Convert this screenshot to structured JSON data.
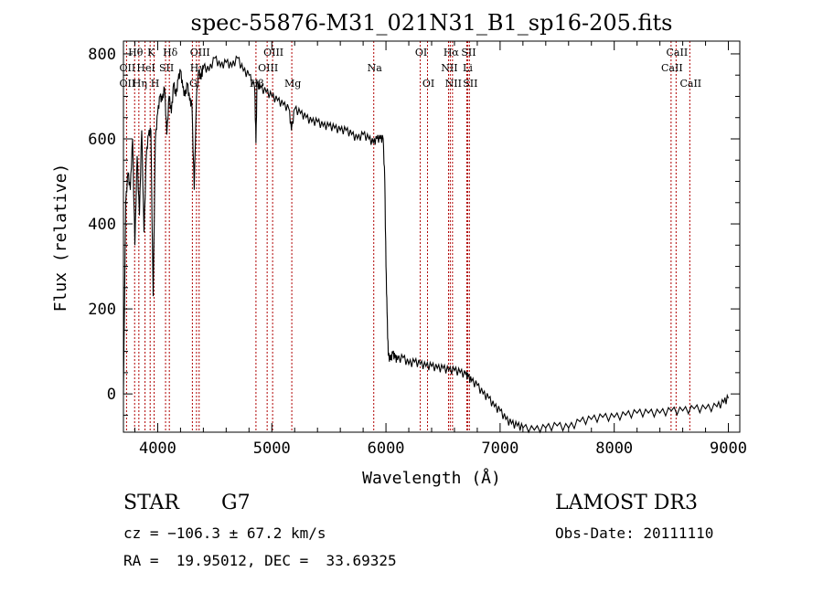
{
  "chart_data": {
    "type": "line",
    "title": "spec-55876-M31_021N31_B1_sp16-205.fits",
    "xlabel": "Wavelength (Å)",
    "ylabel": "Flux (relative)",
    "xlim": [
      3700,
      9100
    ],
    "ylim": [
      -90,
      830
    ],
    "xticks": [
      4000,
      5000,
      6000,
      7000,
      8000,
      9000
    ],
    "yticks": [
      0,
      200,
      400,
      600,
      800
    ],
    "series": [
      {
        "name": "spectrum",
        "x": [
          3700,
          3720,
          3740,
          3760,
          3780,
          3800,
          3820,
          3840,
          3860,
          3880,
          3900,
          3920,
          3940,
          3960,
          3980,
          4000,
          4020,
          4040,
          4060,
          4080,
          4100,
          4120,
          4140,
          4160,
          4180,
          4200,
          4220,
          4240,
          4260,
          4280,
          4300,
          4320,
          4340,
          4360,
          4380,
          4400,
          4450,
          4500,
          4550,
          4600,
          4650,
          4700,
          4750,
          4800,
          4850,
          4861,
          4870,
          4900,
          4950,
          5000,
          5050,
          5100,
          5150,
          5172,
          5200,
          5250,
          5300,
          5350,
          5400,
          5450,
          5500,
          5550,
          5600,
          5650,
          5700,
          5750,
          5800,
          5850,
          5890,
          5920,
          5950,
          5975,
          5990,
          6000,
          6010,
          6020,
          6040,
          6060,
          6080,
          6100,
          6150,
          6200,
          6250,
          6300,
          6350,
          6400,
          6450,
          6500,
          6550,
          6600,
          6650,
          6700,
          6720,
          6750,
          6800,
          6850,
          6900,
          6950,
          7000,
          7050,
          7100,
          7150,
          7200,
          7300,
          7400,
          7500,
          7600,
          7700,
          7800,
          7900,
          8000,
          8100,
          8200,
          8300,
          8400,
          8500,
          8600,
          8700,
          8800,
          8900,
          8960,
          9000
        ],
        "y": [
          0,
          450,
          520,
          480,
          600,
          350,
          560,
          420,
          620,
          380,
          560,
          610,
          620,
          230,
          600,
          660,
          700,
          690,
          720,
          610,
          700,
          660,
          730,
          700,
          740,
          760,
          720,
          700,
          730,
          690,
          680,
          480,
          700,
          760,
          740,
          770,
          760,
          790,
          770,
          780,
          770,
          790,
          760,
          750,
          720,
          590,
          730,
          720,
          710,
          700,
          690,
          680,
          670,
          620,
          670,
          660,
          650,
          640,
          640,
          630,
          630,
          625,
          620,
          620,
          610,
          600,
          610,
          600,
          590,
          600,
          600,
          600,
          500,
          300,
          190,
          90,
          80,
          95,
          85,
          80,
          85,
          70,
          75,
          70,
          65,
          65,
          60,
          60,
          55,
          55,
          50,
          45,
          40,
          30,
          20,
          0,
          -10,
          -30,
          -40,
          -60,
          -70,
          -75,
          -80,
          -85,
          -80,
          -75,
          -80,
          -65,
          -60,
          -55,
          -55,
          -50,
          -45,
          -45,
          -45,
          -40,
          -40,
          -35,
          -35,
          -30,
          -20,
          -10
        ]
      }
    ],
    "lines": [
      {
        "name": "Hθ",
        "wave": 3798,
        "row": 1
      },
      {
        "name": "OII",
        "wave": 3727,
        "row": 2
      },
      {
        "name": "OII",
        "wave": 3727,
        "row": 3
      },
      {
        "name": "K",
        "wave": 3934,
        "row": 1
      },
      {
        "name": "HeI",
        "wave": 3889,
        "row": 2
      },
      {
        "name": "Hη",
        "wave": 3835,
        "row": 3
      },
      {
        "name": "Hδ",
        "wave": 4102,
        "row": 1
      },
      {
        "name": "SII",
        "wave": 4069,
        "row": 2
      },
      {
        "name": "H",
        "wave": 3969,
        "row": 3
      },
      {
        "name": "OIII",
        "wave": 4363,
        "row": 1
      },
      {
        "name": "Hγ",
        "wave": 4340,
        "row": 2
      },
      {
        "name": "G",
        "wave": 4304,
        "row": 3
      },
      {
        "name": "OIII",
        "wave": 5007,
        "row": 1
      },
      {
        "name": "OIII",
        "wave": 4959,
        "row": 2
      },
      {
        "name": "Hβ",
        "wave": 4861,
        "row": 3
      },
      {
        "name": "Mg",
        "wave": 5175,
        "row": 3
      },
      {
        "name": "Na",
        "wave": 5893,
        "row": 2
      },
      {
        "name": "OI",
        "wave": 6300,
        "row": 1
      },
      {
        "name": "OI",
        "wave": 6364,
        "row": 3
      },
      {
        "name": "Hα",
        "wave": 6563,
        "row": 1
      },
      {
        "name": "NII",
        "wave": 6548,
        "row": 2
      },
      {
        "name": "NII",
        "wave": 6583,
        "row": 3
      },
      {
        "name": "SII",
        "wave": 6716,
        "row": 1
      },
      {
        "name": "Li",
        "wave": 6708,
        "row": 2
      },
      {
        "name": "SII",
        "wave": 6731,
        "row": 3
      },
      {
        "name": "CaII",
        "wave": 8542,
        "row": 1
      },
      {
        "name": "CaII",
        "wave": 8498,
        "row": 2
      },
      {
        "name": "CaII",
        "wave": 8662,
        "row": 3
      }
    ]
  },
  "info": {
    "class": "STAR",
    "subclass": "G7",
    "survey": "LAMOST DR3",
    "cz": "cz = −106.3 ± 67.2 km/s",
    "obs_date": "Obs-Date: 20111110",
    "radec": "RA =  19.95012, DEC =  33.69325"
  },
  "colors": {
    "line_markers": "#b00000",
    "spectrum": "#000000"
  }
}
